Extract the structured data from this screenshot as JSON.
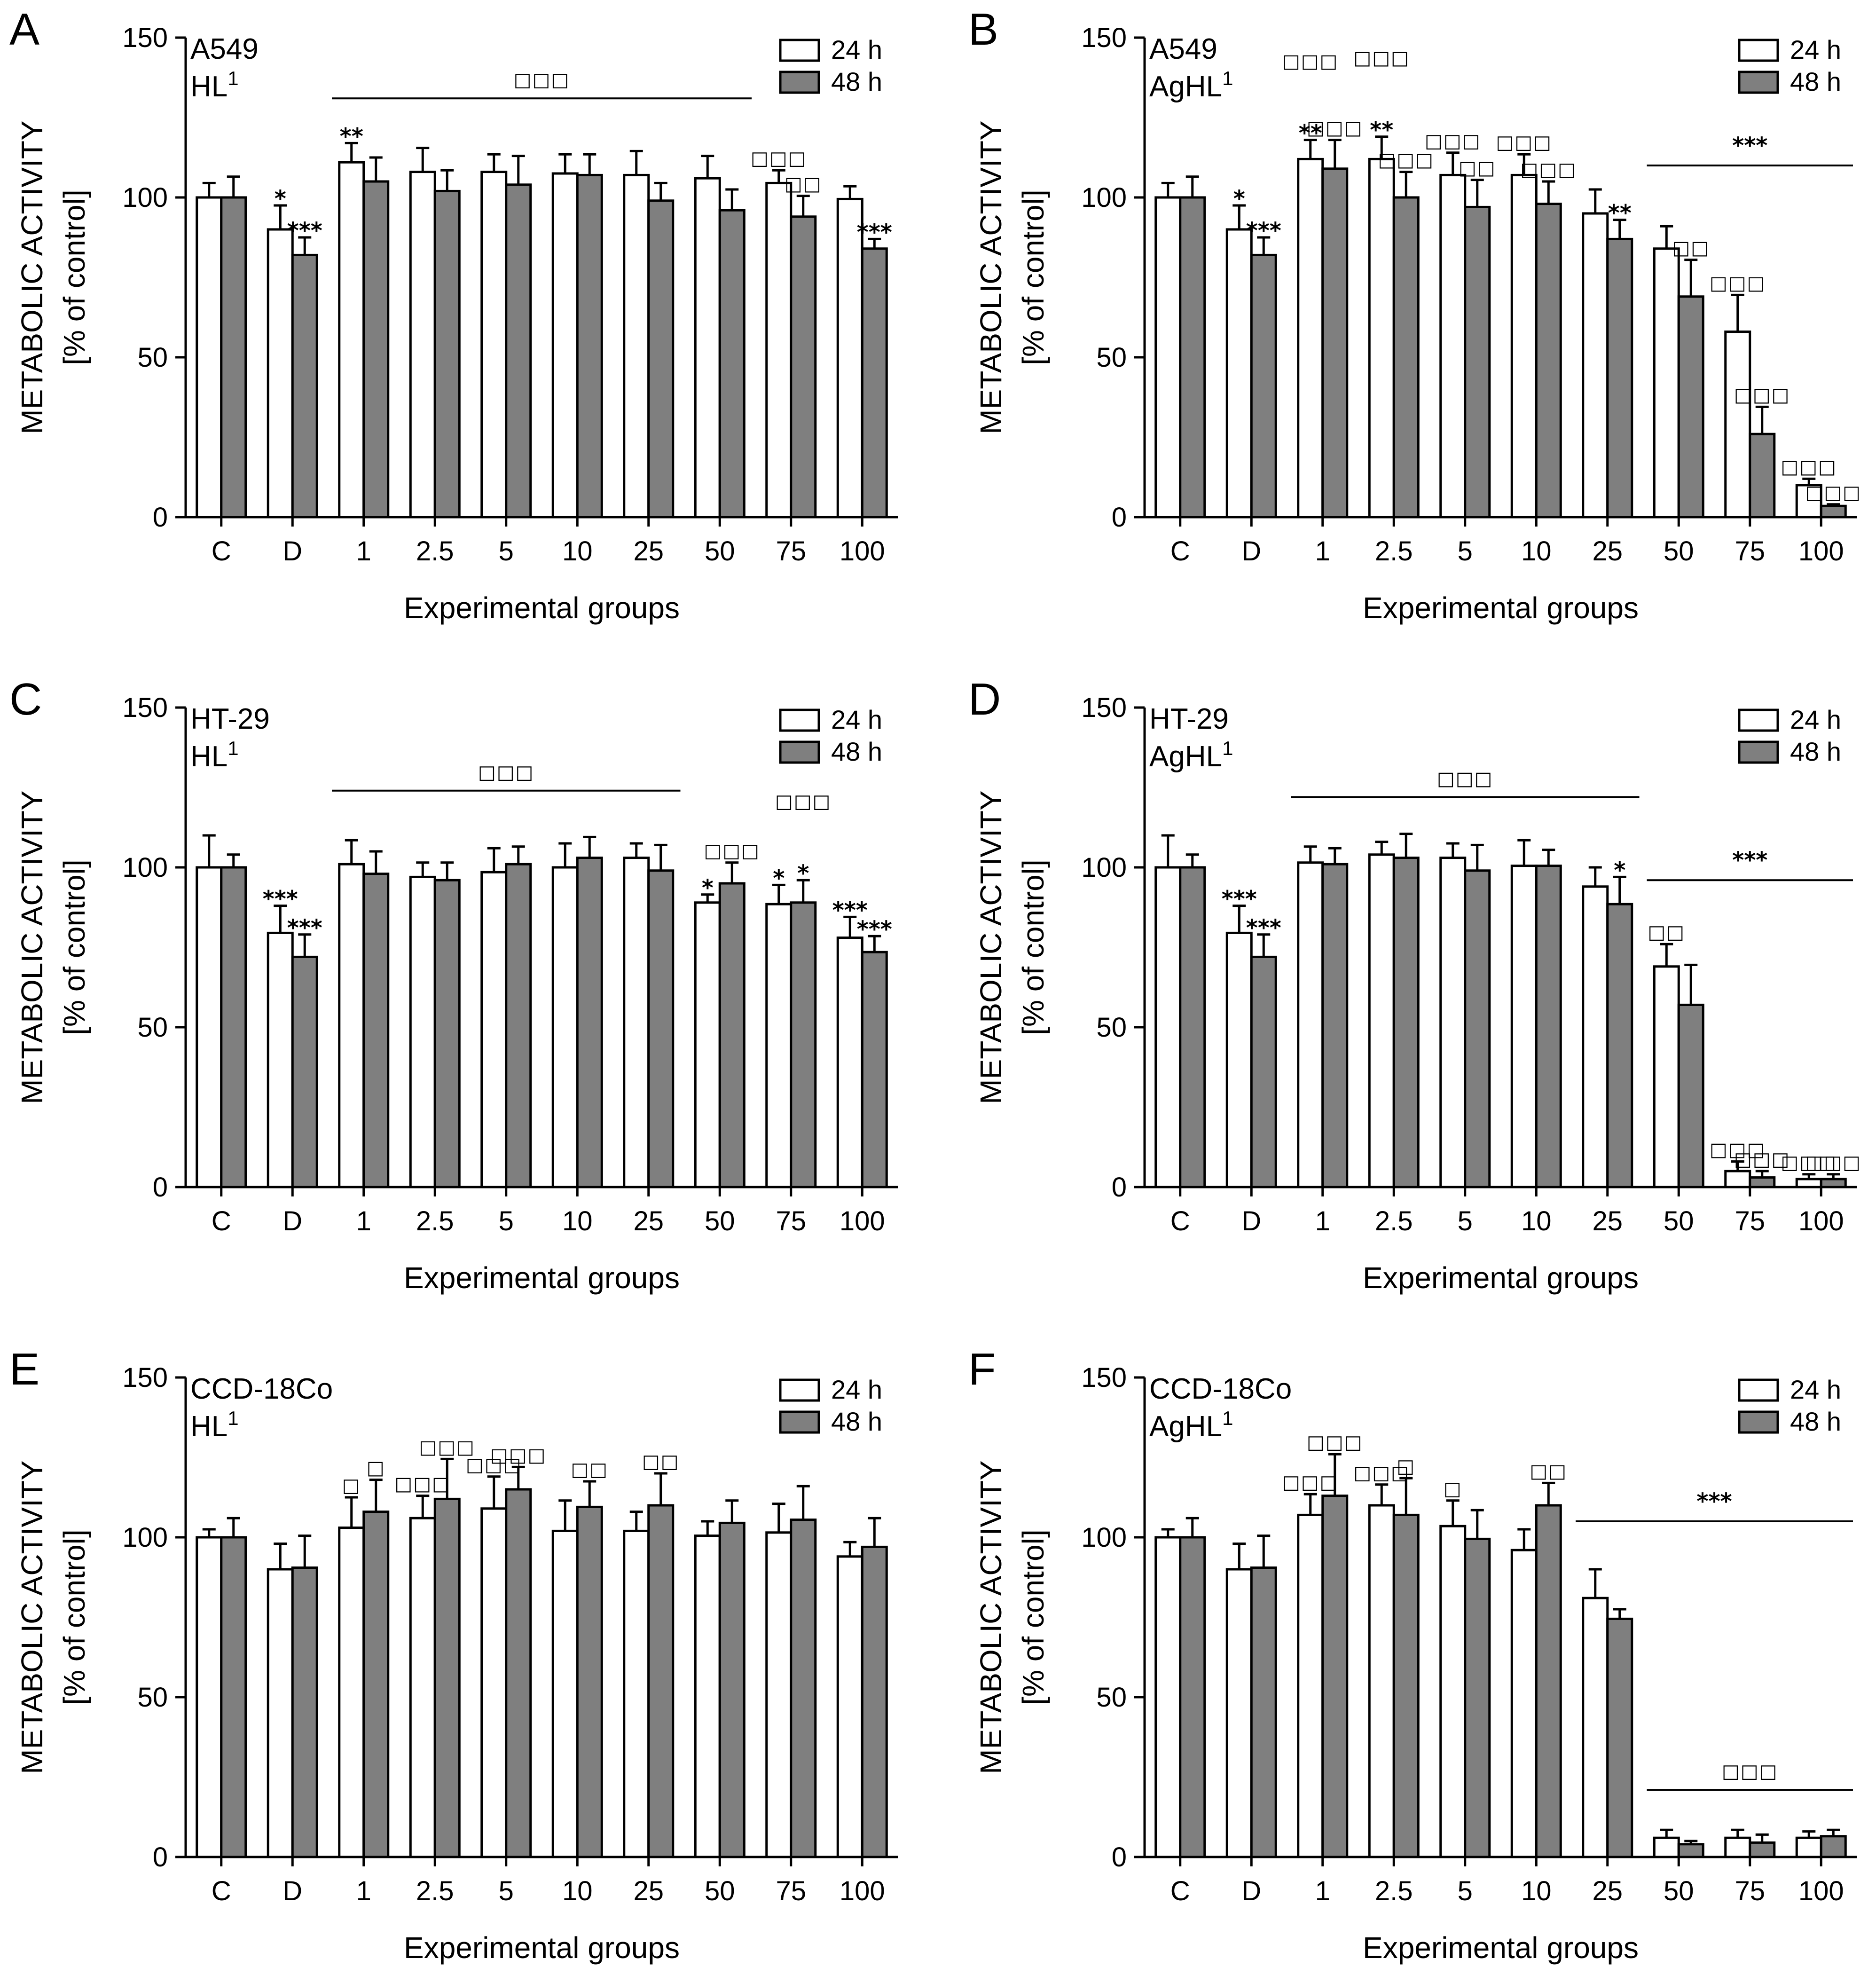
{
  "chart_data": [
    {
      "type": "bar",
      "panel": "A",
      "cell_line": "A549",
      "compound": "HL",
      "compound_sup": "1",
      "xlabel": "Experimental groups",
      "ylabel": "METABOLIC ACTIVITY",
      "ylabel2": "[% of control]",
      "ylim": [
        0,
        150
      ],
      "yticks": [
        0,
        50,
        100,
        150
      ],
      "categories": [
        "C",
        "D",
        "1",
        "2.5",
        "5",
        "10",
        "25",
        "50",
        "75",
        "100"
      ],
      "series": [
        {
          "name": "24 h",
          "values": [
            100,
            90,
            111,
            108,
            108,
            107.5,
            107,
            106,
            104.5,
            99.5
          ],
          "errors": [
            4.5,
            7.5,
            6,
            7.5,
            5.5,
            6,
            7.5,
            7,
            4,
            4
          ]
        },
        {
          "name": "48 h",
          "values": [
            100,
            82,
            105,
            102,
            104,
            107,
            99,
            96,
            94,
            84
          ],
          "errors": [
            6.5,
            5.5,
            7.5,
            6.5,
            9,
            6.5,
            5.5,
            6.5,
            6.5,
            3
          ]
        }
      ],
      "annotations": [
        {
          "text": "*",
          "group": 1,
          "series": 0
        },
        {
          "text": "***",
          "group": 1,
          "series": 1
        },
        {
          "text": "**",
          "group": 2,
          "series": 0
        },
        {
          "text": "□□□",
          "group": 8,
          "series": 0
        },
        {
          "text": "□□",
          "group": 8,
          "series": 1
        },
        {
          "text": "***",
          "group": 9,
          "series": 1
        }
      ],
      "brackets": [
        {
          "text": "□□□",
          "from": 2,
          "to": 7,
          "y": 131
        }
      ]
    },
    {
      "type": "bar",
      "panel": "B",
      "cell_line": "A549",
      "compound": "AgHL",
      "compound_sup": "1",
      "xlabel": "Experimental groups",
      "ylabel": "METABOLIC ACTIVITY",
      "ylabel2": "[% of control]",
      "ylim": [
        0,
        150
      ],
      "yticks": [
        0,
        50,
        100,
        150
      ],
      "categories": [
        "C",
        "D",
        "1",
        "2.5",
        "5",
        "10",
        "25",
        "50",
        "75",
        "100"
      ],
      "series": [
        {
          "name": "24 h",
          "values": [
            100,
            90,
            112,
            112,
            107,
            107,
            95,
            84,
            58,
            10
          ],
          "errors": [
            4.5,
            7.5,
            6,
            7,
            7,
            6.5,
            7.5,
            7,
            11.5,
            2
          ]
        },
        {
          "name": "48 h",
          "values": [
            100,
            82,
            109,
            100,
            97,
            98,
            87,
            69,
            26,
            3.5
          ],
          "errors": [
            6.5,
            5.5,
            9,
            8,
            8.5,
            7,
            6,
            11.5,
            8.5,
            0.5
          ]
        }
      ],
      "annotations": [
        {
          "text": "*",
          "group": 1,
          "series": 0
        },
        {
          "text": "***",
          "group": 1,
          "series": 1
        },
        {
          "text": "□□□",
          "group": 2,
          "series": 0,
          "offset": 22
        },
        {
          "text": "**",
          "group": 2,
          "series": 0
        },
        {
          "text": "□□□",
          "group": 2,
          "series": 1
        },
        {
          "text": "□□□",
          "group": 3,
          "series": 0,
          "offset": 22
        },
        {
          "text": "**",
          "group": 3,
          "series": 0
        },
        {
          "text": "□□□",
          "group": 3,
          "series": 1
        },
        {
          "text": "□□□",
          "group": 4,
          "series": 0
        },
        {
          "text": "□□",
          "group": 4,
          "series": 1
        },
        {
          "text": "□□□",
          "group": 5,
          "series": 0
        },
        {
          "text": "□□□",
          "group": 5,
          "series": 1
        },
        {
          "text": "**",
          "group": 6,
          "series": 1
        },
        {
          "text": "□□",
          "group": 7,
          "series": 1
        },
        {
          "text": "□□□",
          "group": 8,
          "series": 0
        },
        {
          "text": "□□□",
          "group": 8,
          "series": 1
        },
        {
          "text": "□□□",
          "group": 9,
          "series": 0
        },
        {
          "text": "□□□",
          "group": 9,
          "series": 1
        }
      ],
      "brackets": [
        {
          "text": "***",
          "from": 7,
          "to": 9,
          "y": 110
        }
      ]
    },
    {
      "type": "bar",
      "panel": "C",
      "cell_line": "HT-29",
      "compound": "HL",
      "compound_sup": "1",
      "xlabel": "Experimental groups",
      "ylabel": "METABOLIC ACTIVITY",
      "ylabel2": "[% of control]",
      "ylim": [
        0,
        150
      ],
      "yticks": [
        0,
        50,
        100,
        150
      ],
      "categories": [
        "C",
        "D",
        "1",
        "2.5",
        "5",
        "10",
        "25",
        "50",
        "75",
        "100"
      ],
      "series": [
        {
          "name": "24 h",
          "values": [
            100,
            79.5,
            101,
            97,
            98.5,
            100,
            103,
            89,
            88.5,
            78
          ],
          "errors": [
            10,
            8.5,
            7.5,
            4.5,
            7.5,
            7.5,
            4.5,
            2.5,
            6,
            6.5
          ]
        },
        {
          "name": "48 h",
          "values": [
            100,
            72,
            98,
            96,
            101,
            103,
            99,
            95,
            89,
            73.5
          ],
          "errors": [
            4,
            7,
            7,
            5.5,
            5.5,
            6.5,
            8,
            6.5,
            7,
            5
          ]
        }
      ],
      "annotations": [
        {
          "text": "***",
          "group": 1,
          "series": 0
        },
        {
          "text": "***",
          "group": 1,
          "series": 1
        },
        {
          "text": "*",
          "group": 7,
          "series": 0
        },
        {
          "text": "□□□",
          "group": 7,
          "series": 1
        },
        {
          "text": "*",
          "group": 8,
          "series": 0
        },
        {
          "text": "□□□",
          "group": 8,
          "series": 1,
          "offset": 22
        },
        {
          "text": "*",
          "group": 8,
          "series": 1
        },
        {
          "text": "***",
          "group": 9,
          "series": 0
        },
        {
          "text": "***",
          "group": 9,
          "series": 1
        }
      ],
      "brackets": [
        {
          "text": "□□□",
          "from": 2,
          "to": 6,
          "y": 124
        }
      ]
    },
    {
      "type": "bar",
      "panel": "D",
      "cell_line": "HT-29",
      "compound": "AgHL",
      "compound_sup": "1",
      "xlabel": "Experimental groups",
      "ylabel": "METABOLIC ACTIVITY",
      "ylabel2": "[% of control]",
      "ylim": [
        0,
        150
      ],
      "yticks": [
        0,
        50,
        100,
        150
      ],
      "categories": [
        "C",
        "D",
        "1",
        "2.5",
        "5",
        "10",
        "25",
        "50",
        "75",
        "100"
      ],
      "series": [
        {
          "name": "24 h",
          "values": [
            100,
            79.5,
            101.5,
            104,
            103,
            100.5,
            94,
            69,
            5,
            2.5
          ],
          "errors": [
            10,
            8.5,
            5,
            4,
            4.5,
            8,
            6,
            7,
            3,
            1.5
          ]
        },
        {
          "name": "48 h",
          "values": [
            100,
            72,
            101,
            103,
            99,
            100.5,
            88.5,
            57,
            3,
            2.5
          ],
          "errors": [
            4,
            7,
            5,
            7.5,
            8,
            5,
            8.5,
            12.5,
            2,
            1.5
          ]
        }
      ],
      "annotations": [
        {
          "text": "***",
          "group": 1,
          "series": 0
        },
        {
          "text": "***",
          "group": 1,
          "series": 1
        },
        {
          "text": "*",
          "group": 6,
          "series": 1
        },
        {
          "text": "□□",
          "group": 7,
          "series": 0
        },
        {
          "text": "□□□",
          "group": 8,
          "series": 0
        },
        {
          "text": "□□□",
          "group": 8,
          "series": 1
        },
        {
          "text": "□□□",
          "group": 9,
          "series": 0
        },
        {
          "text": "□□□",
          "group": 9,
          "series": 1
        }
      ],
      "brackets": [
        {
          "text": "□□□",
          "from": 2,
          "to": 6,
          "y": 122
        },
        {
          "text": "***",
          "from": 7,
          "to": 9,
          "y": 96
        }
      ]
    },
    {
      "type": "bar",
      "panel": "E",
      "cell_line": "CCD-18Co",
      "compound": "HL",
      "compound_sup": "1",
      "xlabel": "Experimental groups",
      "ylabel": "METABOLIC ACTIVITY",
      "ylabel2": "[% of control]",
      "ylim": [
        0,
        150
      ],
      "yticks": [
        0,
        50,
        100,
        150
      ],
      "categories": [
        "C",
        "D",
        "1",
        "2.5",
        "5",
        "10",
        "25",
        "50",
        "75",
        "100"
      ],
      "series": [
        {
          "name": "24 h",
          "values": [
            100,
            90,
            103,
            106,
            109,
            102,
            102,
            100.5,
            101.5,
            94
          ],
          "errors": [
            2.5,
            8,
            9.5,
            7,
            10,
            9.5,
            6,
            4.5,
            9,
            4.5
          ]
        },
        {
          "name": "48 h",
          "values": [
            100,
            90.5,
            108,
            112,
            115,
            109.5,
            110,
            104.5,
            105.5,
            97
          ],
          "errors": [
            6,
            10,
            10,
            12.5,
            7,
            8,
            10,
            7,
            10.5,
            9
          ]
        }
      ],
      "annotations": [
        {
          "text": "□",
          "group": 2,
          "series": 0
        },
        {
          "text": "□",
          "group": 2,
          "series": 1
        },
        {
          "text": "□□□",
          "group": 3,
          "series": 0
        },
        {
          "text": "□□□",
          "group": 3,
          "series": 1
        },
        {
          "text": "□□□",
          "group": 4,
          "series": 0
        },
        {
          "text": "□□□",
          "group": 4,
          "series": 1
        },
        {
          "text": "□□",
          "group": 5,
          "series": 1
        },
        {
          "text": "□□",
          "group": 6,
          "series": 1
        }
      ],
      "brackets": []
    },
    {
      "type": "bar",
      "panel": "F",
      "cell_line": "CCD-18Co",
      "compound": "AgHL",
      "compound_sup": "1",
      "xlabel": "Experimental groups",
      "ylabel": "METABOLIC ACTIVITY",
      "ylabel2": "[% of control]",
      "ylim": [
        0,
        150
      ],
      "yticks": [
        0,
        50,
        100,
        150
      ],
      "categories": [
        "C",
        "D",
        "1",
        "2.5",
        "5",
        "10",
        "25",
        "50",
        "75",
        "100"
      ],
      "series": [
        {
          "name": "24 h",
          "values": [
            100,
            90,
            107,
            110,
            103.5,
            96,
            81,
            6,
            6,
            6
          ],
          "errors": [
            2.5,
            8,
            6.5,
            6.5,
            8,
            6.5,
            9,
            2.5,
            2.5,
            2
          ]
        },
        {
          "name": "48 h",
          "values": [
            100,
            90.5,
            113,
            107,
            99.5,
            110,
            74.5,
            4,
            4.5,
            6.5
          ],
          "errors": [
            6,
            10,
            13,
            11.5,
            9,
            7,
            3,
            1,
            2.5,
            2
          ]
        }
      ],
      "annotations": [
        {
          "text": "□□□",
          "group": 2,
          "series": 0
        },
        {
          "text": "□□□",
          "group": 2,
          "series": 1
        },
        {
          "text": "□□□",
          "group": 3,
          "series": 0
        },
        {
          "text": "□",
          "group": 3,
          "series": 1
        },
        {
          "text": "□",
          "group": 4,
          "series": 0
        },
        {
          "text": "□□",
          "group": 5,
          "series": 1
        }
      ],
      "brackets": [
        {
          "text": "***",
          "from": 6,
          "to": 9,
          "y": 105
        },
        {
          "text": "□□□",
          "from": 7,
          "to": 9,
          "y": 21
        }
      ]
    }
  ],
  "colors": {
    "series_24h": "#ffffff",
    "series_48h": "#7f7f7f",
    "stroke": "#000000"
  }
}
